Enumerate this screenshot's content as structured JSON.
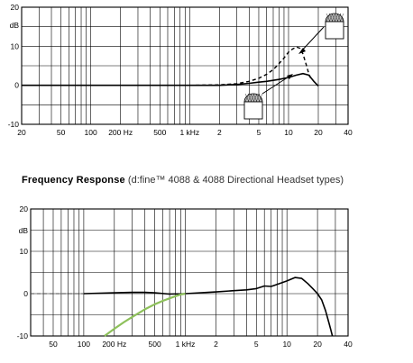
{
  "chart_data": [
    {
      "type": "line",
      "title": "",
      "xlabel": "",
      "ylabel": "dB",
      "x_scale": "log",
      "xlim": [
        20,
        40000
      ],
      "ylim": [
        -10,
        20
      ],
      "x_tick_labels": [
        {
          "x": 20,
          "label": "20"
        },
        {
          "x": 50,
          "label": "50"
        },
        {
          "x": 100,
          "label": "100"
        },
        {
          "x": 200,
          "label": "200 Hz"
        },
        {
          "x": 500,
          "label": "500"
        },
        {
          "x": 1000,
          "label": "1 kHz"
        },
        {
          "x": 2000,
          "label": "2"
        },
        {
          "x": 5000,
          "label": "5"
        },
        {
          "x": 10000,
          "label": "10"
        },
        {
          "x": 20000,
          "label": "20"
        },
        {
          "x": 40000,
          "label": "40"
        }
      ],
      "y_tick_labels": [
        {
          "y": 20,
          "label": "20"
        },
        {
          "y": 10,
          "label": "10"
        },
        {
          "y": 0,
          "label": "0"
        },
        {
          "y": -10,
          "label": "-10"
        }
      ],
      "y_unit_label": "dB",
      "grid": true,
      "series": [
        {
          "style": "solid",
          "color": "#000000",
          "x": [
            20,
            100,
            500,
            1000,
            2000,
            3000,
            4000,
            5000,
            6000,
            8000,
            10000,
            12000,
            14000,
            16000,
            18000,
            20000
          ],
          "y": [
            0,
            0,
            0,
            0,
            0,
            0.2,
            0.5,
            0.8,
            1.0,
            1.5,
            2.0,
            2.6,
            3.0,
            2.6,
            1.0,
            -0.2
          ]
        },
        {
          "style": "dashed",
          "color": "#000000",
          "x": [
            1000,
            2000,
            3000,
            4000,
            5000,
            6000,
            7000,
            8000,
            9000,
            10000,
            11000,
            12000,
            13000,
            14000,
            15000,
            16000,
            17000
          ],
          "y": [
            0,
            0.1,
            0.4,
            1.0,
            1.8,
            2.8,
            4.0,
            5.5,
            7.0,
            8.5,
            9.3,
            9.8,
            9.5,
            8.0,
            5.5,
            3.0,
            1.5
          ]
        }
      ],
      "annotations": [
        "cardioid-capsule-icon",
        "omni-capsule-icon"
      ]
    },
    {
      "type": "line",
      "title": "Frequency Response",
      "subtitle": "(d:fine™ 4088 & 4088 Directional Headset types)",
      "xlabel": "",
      "ylabel": "dB",
      "x_scale": "log",
      "xlim": [
        30,
        40000
      ],
      "ylim": [
        -10,
        20
      ],
      "x_tick_labels": [
        {
          "x": 50,
          "label": "50"
        },
        {
          "x": 100,
          "label": "100"
        },
        {
          "x": 200,
          "label": "200 Hz"
        },
        {
          "x": 500,
          "label": "500"
        },
        {
          "x": 1000,
          "label": "1 kHz"
        },
        {
          "x": 2000,
          "label": "2"
        },
        {
          "x": 5000,
          "label": "5"
        },
        {
          "x": 10000,
          "label": "10"
        },
        {
          "x": 20000,
          "label": "20"
        },
        {
          "x": 40000,
          "label": "40"
        }
      ],
      "y_tick_labels": [
        {
          "y": 20,
          "label": "20"
        },
        {
          "y": 10,
          "label": "10"
        },
        {
          "y": 0,
          "label": "0"
        },
        {
          "y": -10,
          "label": "-10"
        }
      ],
      "y_unit_label": "dB",
      "grid": true,
      "series": [
        {
          "style": "dashed-thin",
          "color": "#444444",
          "x": [
            30,
            100
          ],
          "y": [
            0,
            0
          ]
        },
        {
          "style": "solid",
          "color": "#000000",
          "x": [
            100,
            200,
            300,
            400,
            500,
            700,
            1000,
            2000,
            3000,
            4000,
            5000,
            6000,
            7000,
            8000,
            10000,
            12000,
            14000,
            16000,
            18000,
            20000,
            22000,
            24000,
            26000,
            27000,
            28000
          ],
          "y": [
            0,
            0.2,
            0.3,
            0.3,
            0.2,
            -0.1,
            0,
            0.4,
            0.7,
            0.9,
            1.2,
            1.8,
            1.7,
            2.2,
            3.0,
            3.8,
            3.6,
            2.4,
            1.2,
            0,
            -1.5,
            -4.0,
            -7.0,
            -8.5,
            -10.0
          ]
        },
        {
          "style": "solid",
          "color": "#8dc05a",
          "x": [
            160,
            200,
            250,
            300,
            400,
            500,
            600,
            700,
            800,
            900,
            1000
          ],
          "y": [
            -10,
            -8.3,
            -6.7,
            -5.5,
            -3.7,
            -2.5,
            -1.7,
            -1.1,
            -0.6,
            -0.2,
            0
          ]
        }
      ]
    }
  ]
}
